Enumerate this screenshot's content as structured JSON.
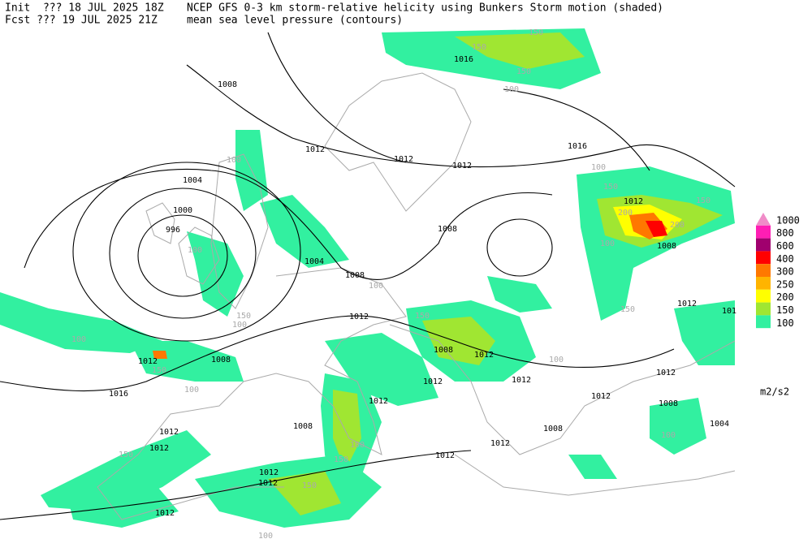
{
  "header": {
    "init": "Init  ??? 18 JUL 2025 18Z",
    "fcst": "Fcst ??? 19 JUL 2025 21Z",
    "title": "NCEP GFS 0-3 km storm-relative helicity using Bunkers Storm motion (shaded)",
    "subtitle": "mean sea level pressure (contours)"
  },
  "legend": {
    "levels": [
      {
        "label": "1000",
        "color": "#f08cc8"
      },
      {
        "label": "800",
        "color": "#ff1eb4"
      },
      {
        "label": "600",
        "color": "#a0006e"
      },
      {
        "label": "400",
        "color": "#ff0000"
      },
      {
        "label": "300",
        "color": "#ff7800"
      },
      {
        "label": "250",
        "color": "#ffb400"
      },
      {
        "label": "200",
        "color": "#ffff00"
      },
      {
        "label": "150",
        "color": "#a0e632"
      },
      {
        "label": "100",
        "color": "#32f0a0"
      }
    ],
    "units": "m2/s2"
  },
  "contour_labels": [
    "1008",
    "1016",
    "1012",
    "1012",
    "1012",
    "1016",
    "1004",
    "1000",
    "996",
    "1004",
    "1008",
    "1008",
    "1012",
    "1008",
    "1012",
    "1012",
    "1012",
    "1008",
    "1008",
    "1012",
    "1012",
    "1012",
    "1016",
    "1012",
    "1012",
    "1012",
    "1008",
    "1004",
    "1012",
    "1012",
    "1008",
    "1008",
    "1012",
    "1012",
    "1012",
    "1012",
    "1012",
    "101"
  ],
  "helicity_labels": [
    "150",
    "150",
    "150",
    "100",
    "100",
    "100",
    "150",
    "200",
    "200",
    "150",
    "100",
    "100",
    "150",
    "100",
    "100",
    "100",
    "150",
    "150",
    "100",
    "100",
    "100",
    "150",
    "150",
    "100",
    "100",
    "150",
    "150"
  ]
}
